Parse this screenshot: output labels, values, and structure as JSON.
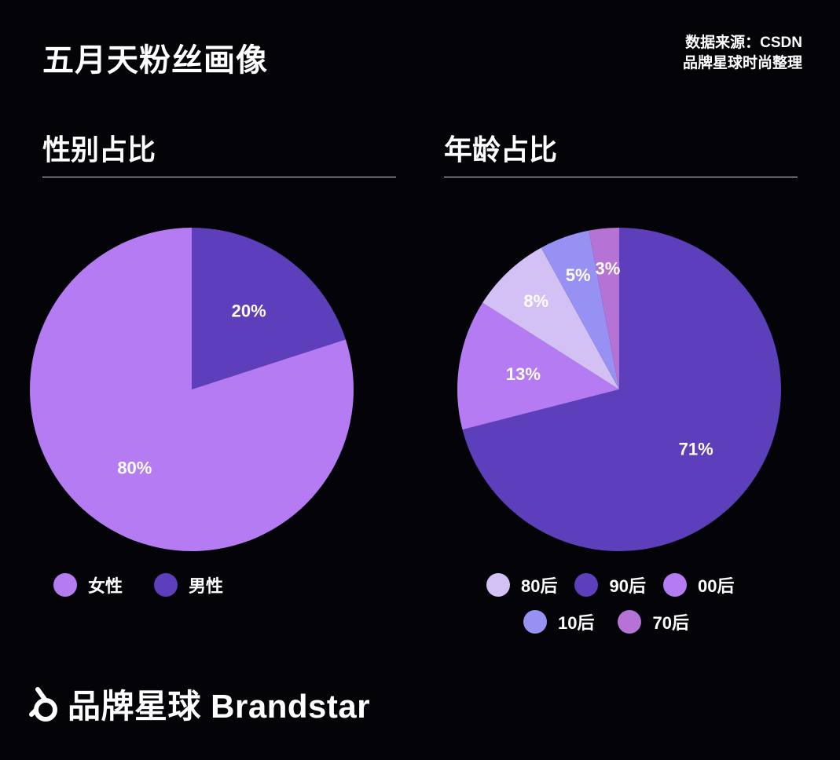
{
  "header": {
    "title": "五月天粉丝画像",
    "source_line1": "数据来源：CSDN",
    "source_line2": "品牌星球时尚整理"
  },
  "footer": {
    "brand": "品牌星球 Brandstar"
  },
  "chart_data": [
    {
      "type": "pie",
      "title": "性别占比",
      "categories": [
        "女性",
        "男性"
      ],
      "values": [
        80,
        20
      ],
      "labels": [
        "80%",
        "20%"
      ],
      "colors": [
        "#b57bf2",
        "#5d3fbc"
      ],
      "slice_order": [
        "男性",
        "女性"
      ],
      "start": "12 o'clock, clockwise",
      "legend": "bottom"
    },
    {
      "type": "pie",
      "title": "年龄占比",
      "categories": [
        "80后",
        "90后",
        "00后",
        "10后",
        "70后"
      ],
      "values": [
        8,
        71,
        13,
        5,
        3
      ],
      "labels": [
        "8%",
        "71%",
        "13%",
        "5%",
        "3%"
      ],
      "colors": [
        "#d3c0f5",
        "#5d3fbc",
        "#b57bf2",
        "#9691f2",
        "#b573d6"
      ],
      "slice_order": [
        "90后",
        "00后",
        "80后",
        "10后",
        "70后"
      ],
      "start": "12 o'clock, clockwise",
      "legend": "bottom"
    }
  ]
}
